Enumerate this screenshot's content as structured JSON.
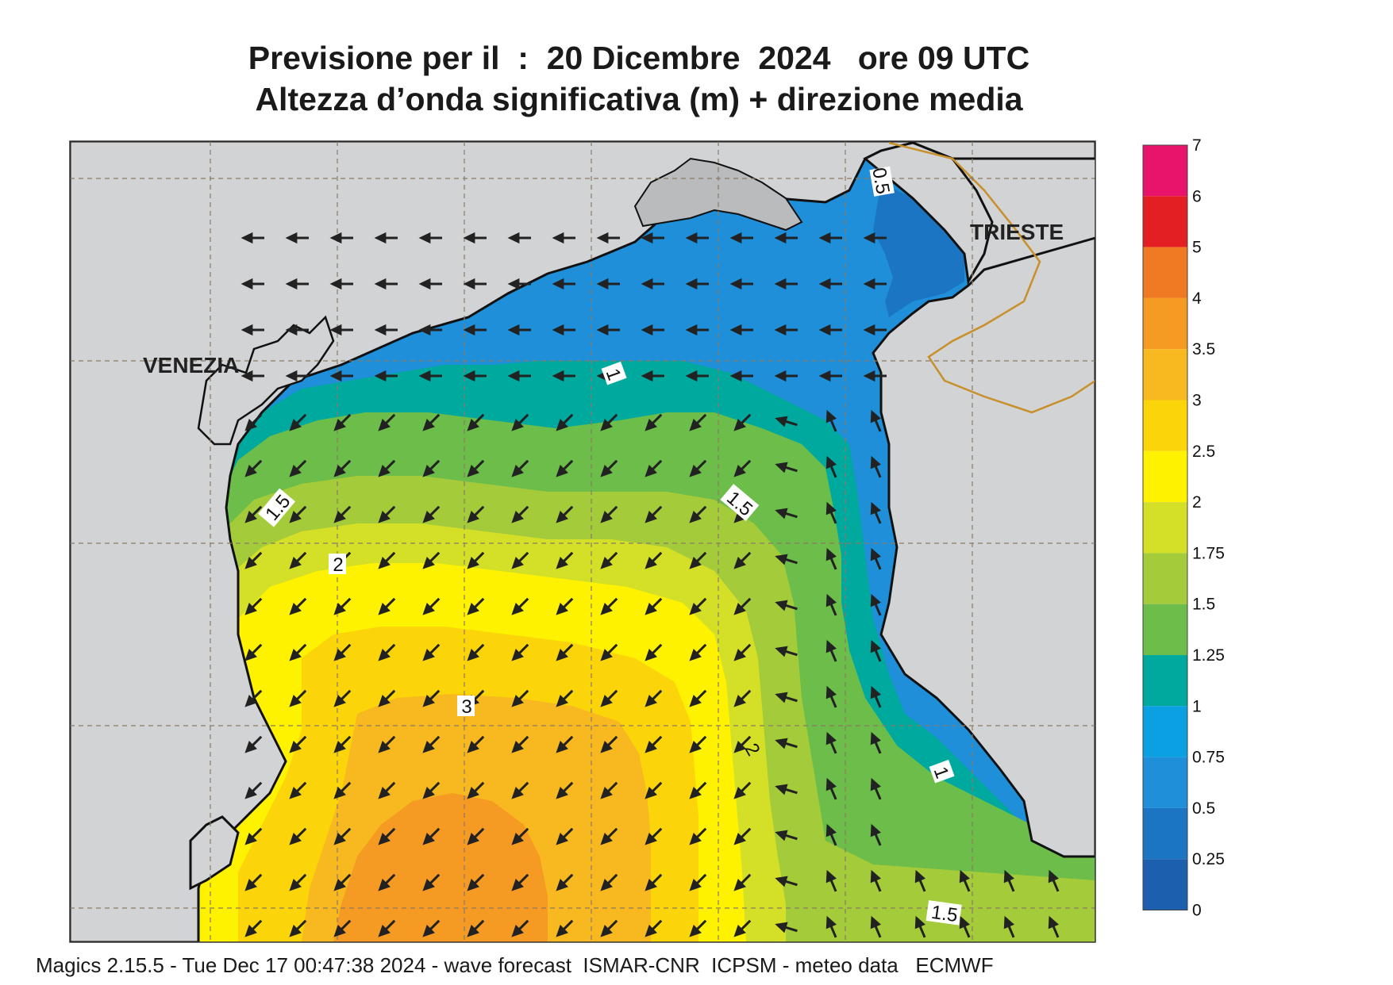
{
  "title": {
    "line1": "Previsione per il  :  20 Dicembre  2024   ore 09 UTC",
    "line2": "Altezza d’onda significativa (m) + direzione media"
  },
  "cities": [
    "VENEZIA",
    "TRIESTE"
  ],
  "contour_labels": [
    "0.5",
    "1",
    "1",
    "1",
    "1.5",
    "1.5",
    "1.5",
    "2",
    "3",
    "2"
  ],
  "colorbar": {
    "ticks": [
      "7",
      "6",
      "5",
      "4",
      "3.5",
      "3",
      "2.5",
      "2",
      "1.75",
      "1.5",
      "1.25",
      "1",
      "0.75",
      "0.5",
      "0.25",
      "0"
    ],
    "colors_top_to_bottom": [
      "#e8146c",
      "#e41f23",
      "#f07a23",
      "#f59a22",
      "#f8b81f",
      "#fbd40a",
      "#fff200",
      "#d4df27",
      "#a3cb3a",
      "#6cbd49",
      "#00a99d",
      "#0aa0e2",
      "#1e8fd8",
      "#1b75c2",
      "#1b5fae"
    ]
  },
  "footer": "Magics 2.15.5 - Tue Dec 17 00:47:38 2024 - wave forecast  ISMAR-CNR  ICPSM - meteo data   ECMWF",
  "colors": {
    "land": "#d2d3d5",
    "coast": "#111111",
    "border": "#c8902a",
    "arrow": "#222222"
  }
}
